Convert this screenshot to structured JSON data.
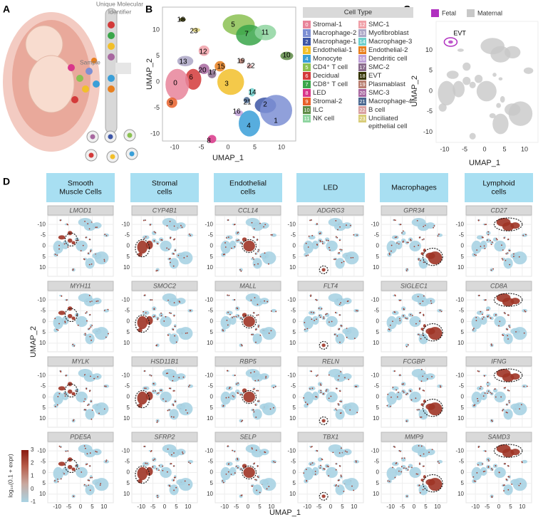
{
  "panel_labels": [
    "A",
    "B",
    "C",
    "D"
  ],
  "panel_a": {
    "identifier_label": [
      "Unique Molecular",
      "Identifier"
    ],
    "sample_label": "Sample"
  },
  "panel_b": {
    "x_label": "UMAP_1",
    "y_label": "UMAP_2",
    "xticks": [
      -10,
      -5,
      0,
      5,
      10
    ],
    "yticks": [
      10,
      5,
      0,
      -5,
      -10
    ],
    "legend_title": "Cell Type",
    "clusters": [
      {
        "id": 0,
        "name": "Stromal-1",
        "color": "#e8849a"
      },
      {
        "id": 1,
        "name": "Macrophage-2",
        "color": "#7d8fd3"
      },
      {
        "id": 2,
        "name": "Macrophage-1",
        "color": "#3d56a6"
      },
      {
        "id": 3,
        "name": "Endothelial-1",
        "color": "#f2bf2a"
      },
      {
        "id": 4,
        "name": "Monocyte",
        "color": "#3a9fd8"
      },
      {
        "id": 5,
        "name": "CD4⁺ T cell",
        "color": "#8bc152"
      },
      {
        "id": 6,
        "name": "Decidual",
        "color": "#d33a3a"
      },
      {
        "id": 7,
        "name": "CD8⁺ T cell",
        "color": "#3aa64a"
      },
      {
        "id": 8,
        "name": "LED",
        "color": "#d9368a"
      },
      {
        "id": 9,
        "name": "Stromal-2",
        "color": "#e8602a"
      },
      {
        "id": 10,
        "name": "ILC",
        "color": "#5d8a45"
      },
      {
        "id": 11,
        "name": "NK cell",
        "color": "#8fd5a0"
      },
      {
        "id": 12,
        "name": "SMC-1",
        "color": "#f0a0a8"
      },
      {
        "id": 13,
        "name": "Myofibroblast",
        "color": "#aca6c6"
      },
      {
        "id": 14,
        "name": "Macrophage-3",
        "color": "#6fd0cc"
      },
      {
        "id": 15,
        "name": "Endothelial-2",
        "color": "#e8801f"
      },
      {
        "id": 16,
        "name": "Dendritic cell",
        "color": "#bfa0d8"
      },
      {
        "id": 17,
        "name": "SMC-2",
        "color": "#8a6b8c"
      },
      {
        "id": 18,
        "name": "EVT",
        "color": "#333300"
      },
      {
        "id": 19,
        "name": "Plasmablast",
        "color": "#b87e70"
      },
      {
        "id": 20,
        "name": "SMC-3",
        "color": "#a868a0"
      },
      {
        "id": 21,
        "name": "Macrophage-4",
        "color": "#4a6890"
      },
      {
        "id": 22,
        "name": "B cell",
        "color": "#d8a0a0"
      },
      {
        "id": 23,
        "name": "Unciliated epithelial cell",
        "color": "#d8cc78"
      }
    ]
  },
  "panel_c": {
    "legend": [
      {
        "name": "Fetal",
        "color": "#b030c0"
      },
      {
        "name": "Maternal",
        "color": "#c8c8c8"
      }
    ],
    "annotation": "EVT",
    "x_label": "UMAP_1",
    "y_label": "UMAP_2",
    "xticks": [
      -10,
      -5,
      0,
      5,
      10
    ],
    "yticks": [
      10,
      5,
      0,
      -5,
      -10
    ]
  },
  "panel_d": {
    "columns": [
      {
        "header": [
          "Smooth",
          "Muscle Cells"
        ],
        "genes": [
          "LMOD1",
          "MYH11",
          "MYLK",
          "PDE5A"
        ]
      },
      {
        "header": [
          "Stromal",
          "cells"
        ],
        "genes": [
          "CYP4B1",
          "SMOC2",
          "HSD11B1",
          "SFRP2"
        ]
      },
      {
        "header": [
          "Endothelial",
          "cells"
        ],
        "genes": [
          "CCL14",
          "MALL",
          "RBP5",
          "SELP"
        ]
      },
      {
        "header": [
          "LED"
        ],
        "genes": [
          "ADGRG3",
          "FLT4",
          "RELN",
          "TBX1"
        ]
      },
      {
        "header": [
          "Macrophages"
        ],
        "genes": [
          "GPR34",
          "SIGLEC1",
          "FCGBP",
          "MMP9"
        ]
      },
      {
        "header": [
          "Lymphoid",
          "cells"
        ],
        "genes": [
          "CD27",
          "CD8A",
          "IFNG",
          "SAMD3"
        ]
      }
    ],
    "x_label": "UMAP_1",
    "y_label": "UMAP_2",
    "xticks": [
      -10,
      -5,
      0,
      5,
      10
    ],
    "yticks": [
      -10,
      -5,
      0,
      5,
      10
    ],
    "colorbar": {
      "label": "log₁₀(0.1 + expr)",
      "ticks": [
        -1,
        0,
        1,
        2,
        3
      ]
    }
  }
}
